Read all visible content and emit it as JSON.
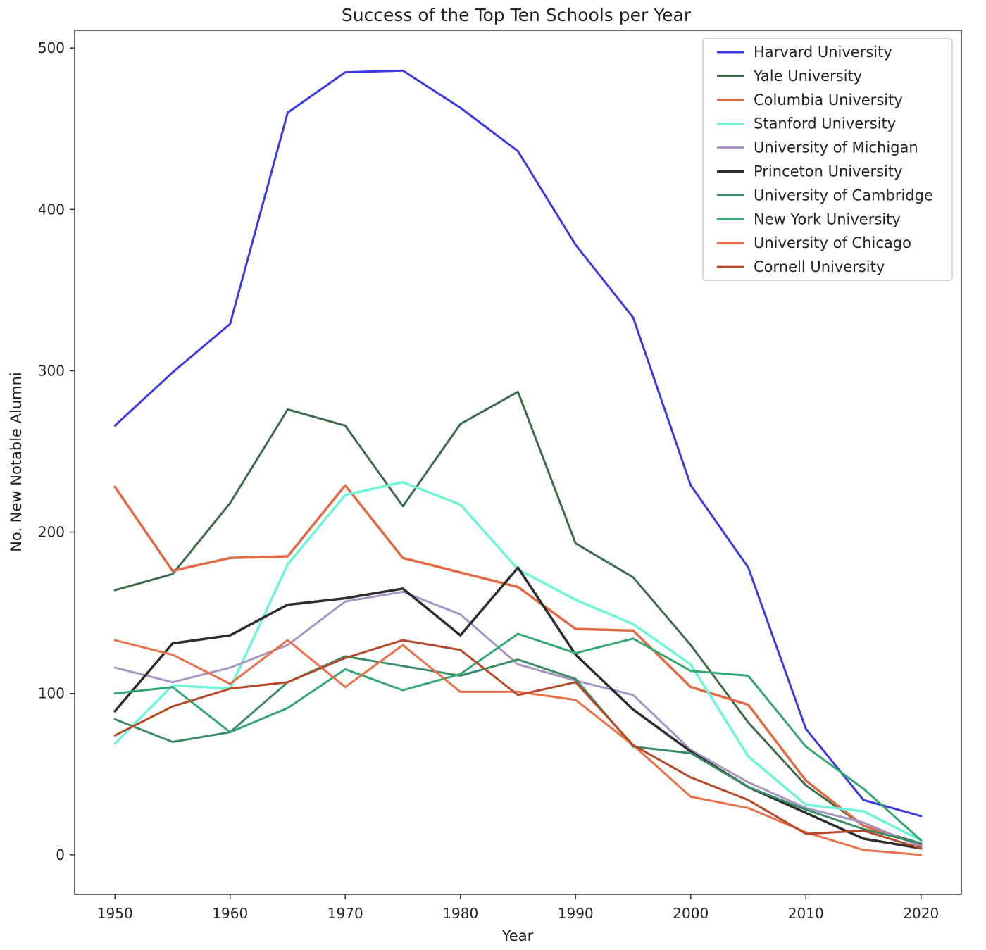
{
  "chart_data": {
    "type": "line",
    "title": "Success of the Top Ten Schools per Year",
    "xlabel": "Year",
    "ylabel": "No. New Notable Alumni",
    "x": [
      1950,
      1955,
      1960,
      1965,
      1970,
      1975,
      1980,
      1985,
      1990,
      1995,
      2000,
      2005,
      2010,
      2015,
      2020
    ],
    "xticks": [
      1950,
      1960,
      1970,
      1980,
      1990,
      2000,
      2010,
      2020
    ],
    "yticks": [
      0,
      100,
      200,
      300,
      400,
      500
    ],
    "xlim": [
      1946.5,
      2023.5
    ],
    "ylim": [
      -24.5,
      511
    ],
    "grid": false,
    "legend_position": "top-right",
    "series": [
      {
        "name": "Harvard University",
        "color": "#3a3ae0",
        "width": 3,
        "values": [
          266,
          299,
          329,
          460,
          485,
          486,
          463,
          436,
          378,
          333,
          229,
          178,
          78,
          34,
          24
        ]
      },
      {
        "name": "Yale University",
        "color": "#3d6b4a",
        "width": 3,
        "values": [
          164,
          174,
          218,
          276,
          266,
          216,
          267,
          287,
          193,
          172,
          130,
          82,
          43,
          18,
          7
        ]
      },
      {
        "name": "Columbia University",
        "color": "#e06a43",
        "width": 3.5,
        "values": [
          228,
          176,
          184,
          185,
          229,
          184,
          175,
          166,
          140,
          139,
          104,
          93,
          46,
          18,
          6
        ]
      },
      {
        "name": "Stanford University",
        "color": "#6ef5d8",
        "width": 3.5,
        "values": [
          69,
          105,
          103,
          180,
          223,
          231,
          217,
          177,
          158,
          143,
          118,
          61,
          31,
          27,
          9
        ]
      },
      {
        "name": "University of Michigan",
        "color": "#a995c3",
        "width": 3,
        "values": [
          116,
          107,
          116,
          130,
          157,
          163,
          149,
          118,
          108,
          99,
          65,
          45,
          29,
          20,
          5
        ]
      },
      {
        "name": "Princeton University",
        "color": "#2e2e2e",
        "width": 3.5,
        "values": [
          89,
          131,
          136,
          155,
          159,
          165,
          136,
          178,
          124,
          90,
          64,
          42,
          26,
          10,
          4
        ]
      },
      {
        "name": "University of Cambridge",
        "color": "#3c8c68",
        "width": 3,
        "values": [
          84,
          70,
          76,
          107,
          123,
          117,
          111,
          121,
          109,
          67,
          63,
          42,
          28,
          16,
          7
        ]
      },
      {
        "name": "New York University",
        "color": "#35a772",
        "width": 3,
        "values": [
          100,
          104,
          76,
          91,
          115,
          102,
          112,
          137,
          125,
          134,
          114,
          111,
          67,
          41,
          9
        ]
      },
      {
        "name": "University of Chicago",
        "color": "#e9714a",
        "width": 3,
        "values": [
          133,
          124,
          106,
          133,
          104,
          130,
          101,
          101,
          96,
          68,
          36,
          29,
          14,
          3,
          0
        ]
      },
      {
        "name": "Cornell University",
        "color": "#b34a2a",
        "width": 3,
        "values": [
          74,
          92,
          103,
          107,
          122,
          133,
          127,
          99,
          107,
          68,
          48,
          34,
          13,
          15,
          4
        ]
      }
    ]
  }
}
